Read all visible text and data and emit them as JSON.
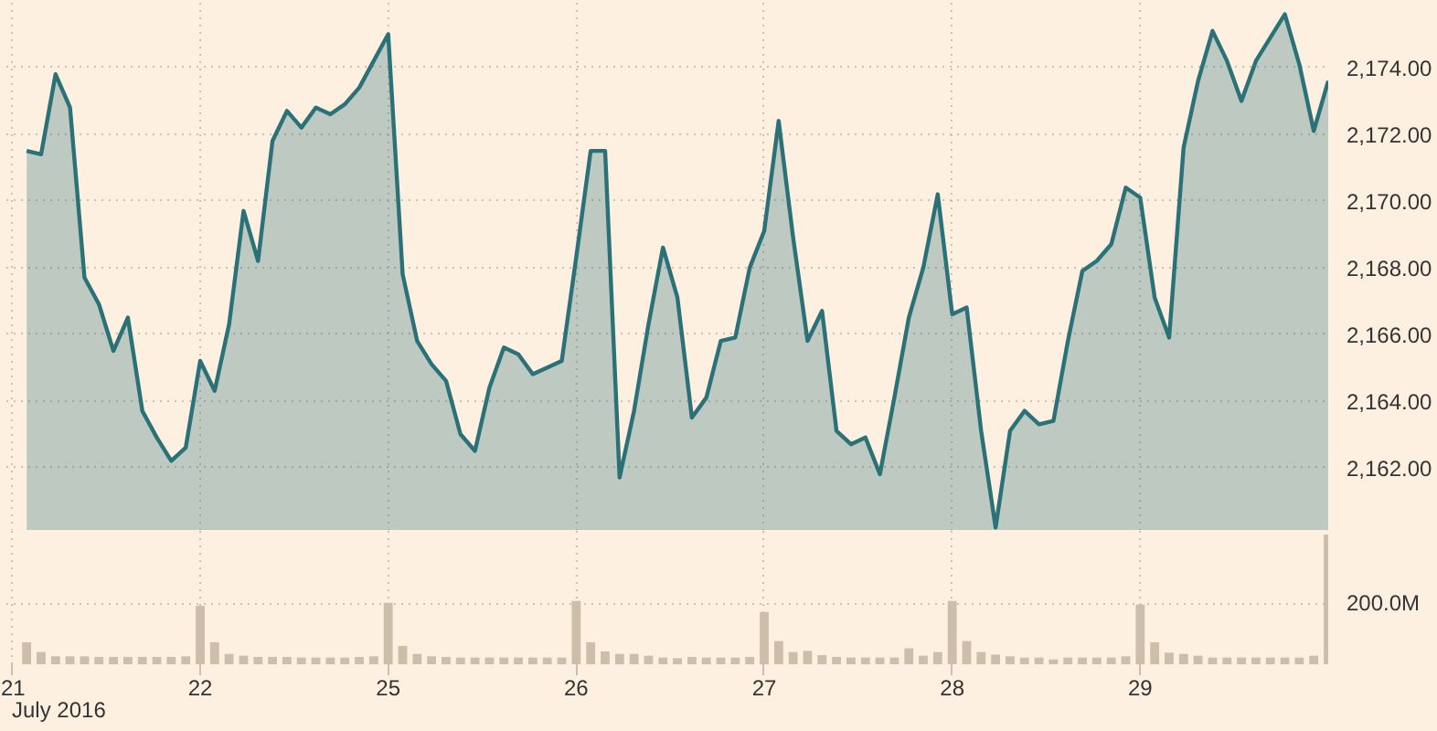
{
  "chart_data": [
    {
      "type": "area",
      "color": "#2b7278",
      "categories": [
        "21",
        null,
        null,
        null,
        null,
        null,
        null,
        null,
        null,
        null,
        null,
        null,
        null,
        "22",
        null,
        null,
        null,
        null,
        null,
        null,
        null,
        null,
        null,
        null,
        null,
        null,
        "25",
        null,
        null,
        null,
        null,
        null,
        null,
        null,
        null,
        null,
        null,
        null,
        null,
        "26",
        null,
        null,
        null,
        null,
        null,
        null,
        null,
        null,
        null,
        null,
        null,
        null,
        "27",
        null,
        null,
        null,
        null,
        null,
        null,
        null,
        null,
        null,
        null,
        null,
        null,
        "28",
        null,
        null,
        null,
        null,
        null,
        null,
        null,
        null,
        null,
        null,
        null,
        null,
        "29",
        null,
        null,
        null,
        null,
        null,
        null,
        null,
        null,
        null,
        null,
        null,
        null,
        null
      ],
      "values": [
        null,
        2171.5,
        2171.4,
        2173.8,
        2172.8,
        2167.7,
        2166.9,
        2165.5,
        2166.5,
        2163.7,
        2162.9,
        2162.2,
        2162.6,
        2165.2,
        2164.3,
        2166.3,
        2169.7,
        2168.2,
        2171.8,
        2172.7,
        2172.2,
        2172.8,
        2172.6,
        2172.9,
        2173.4,
        2174.2,
        2175.0,
        2167.8,
        2165.8,
        2165.1,
        2164.6,
        2163.0,
        2162.5,
        2164.4,
        2165.6,
        2165.4,
        2164.8,
        2165.0,
        2165.2,
        2168.3,
        2171.5,
        2171.5,
        2161.7,
        2163.7,
        2166.3,
        2168.6,
        2167.1,
        2163.5,
        2164.1,
        2165.8,
        2165.9,
        2168.0,
        2169.1,
        2172.4,
        2168.9,
        2165.8,
        2166.7,
        2163.1,
        2162.7,
        2162.9,
        2161.8,
        2164.1,
        2166.5,
        2168.0,
        2170.2,
        2166.6,
        2166.8,
        2163.1,
        2160.2,
        2163.1,
        2163.7,
        2163.3,
        2163.4,
        2165.8,
        2167.9,
        2168.2,
        2168.7,
        2170.4,
        2170.1,
        2167.1,
        2165.9,
        2171.6,
        2173.6,
        2175.1,
        2174.2,
        2173.0,
        2174.2,
        2174.9,
        2175.6,
        2174.1,
        2172.1,
        2173.6
      ],
      "ylim": [
        2160.1,
        2176
      ],
      "yticks": [
        {
          "value": 2162,
          "label": "2,162.00"
        },
        {
          "value": 2164,
          "label": "2,164.00"
        },
        {
          "value": 2166,
          "label": "2,166.00"
        },
        {
          "value": 2168,
          "label": "2,168.00"
        },
        {
          "value": 2170,
          "label": "2,170.00"
        },
        {
          "value": 2172,
          "label": "2,172.00"
        },
        {
          "value": 2174,
          "label": "2,174.00"
        }
      ],
      "grid": true,
      "tick_labels": "y"
    },
    {
      "type": "bar",
      "color": "#cdbdab",
      "xlabel": "July 2016",
      "categories": [
        "21",
        null,
        null,
        null,
        null,
        null,
        null,
        null,
        null,
        null,
        null,
        null,
        null,
        "22",
        null,
        null,
        null,
        null,
        null,
        null,
        null,
        null,
        null,
        null,
        null,
        null,
        "25",
        null,
        null,
        null,
        null,
        null,
        null,
        null,
        null,
        null,
        null,
        null,
        null,
        "26",
        null,
        null,
        null,
        null,
        null,
        null,
        null,
        null,
        null,
        null,
        null,
        null,
        "27",
        null,
        null,
        null,
        null,
        null,
        null,
        null,
        null,
        null,
        null,
        null,
        null,
        "28",
        null,
        null,
        null,
        null,
        null,
        null,
        null,
        null,
        null,
        null,
        null,
        null,
        "29",
        null,
        null,
        null,
        null,
        null,
        null,
        null,
        null,
        null,
        null,
        null,
        null,
        null
      ],
      "values": [
        null,
        72,
        40,
        26,
        26,
        26,
        24,
        24,
        24,
        24,
        24,
        24,
        26,
        191,
        72,
        34,
        28,
        24,
        24,
        24,
        22,
        22,
        22,
        22,
        24,
        26,
        201,
        60,
        34,
        26,
        24,
        22,
        22,
        22,
        22,
        22,
        22,
        22,
        22,
        207,
        72,
        42,
        34,
        34,
        28,
        22,
        20,
        24,
        22,
        22,
        22,
        24,
        171,
        76,
        40,
        44,
        30,
        24,
        22,
        22,
        22,
        22,
        52,
        28,
        40,
        207,
        76,
        40,
        32,
        26,
        22,
        22,
        16,
        22,
        22,
        22,
        22,
        26,
        195,
        72,
        38,
        34,
        28,
        22,
        22,
        22,
        22,
        22,
        22,
        22,
        28,
        424
      ],
      "ylim": [
        0,
        436
      ],
      "yticks": [
        {
          "value": 200,
          "label": "200.0M"
        }
      ],
      "grid": true
    }
  ]
}
